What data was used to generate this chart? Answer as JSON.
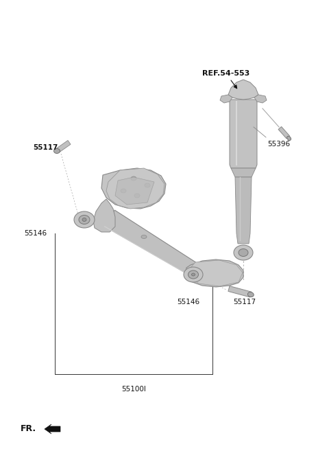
{
  "background_color": "#ffffff",
  "fig_width": 4.8,
  "fig_height": 6.57,
  "dpi": 100,
  "beam_color": "#b8b8b8",
  "beam_edge": "#888888",
  "label_color": "#111111",
  "label_fontsize": 7.5,
  "parts": {
    "torsion_beam_label": "55100l",
    "left_bushing_label": "55146",
    "left_bolt_label": "55117",
    "right_bushing_label": "55146",
    "right_bolt_label": "55117",
    "shock_label": "55396",
    "ref_label": "REF.54-553"
  }
}
